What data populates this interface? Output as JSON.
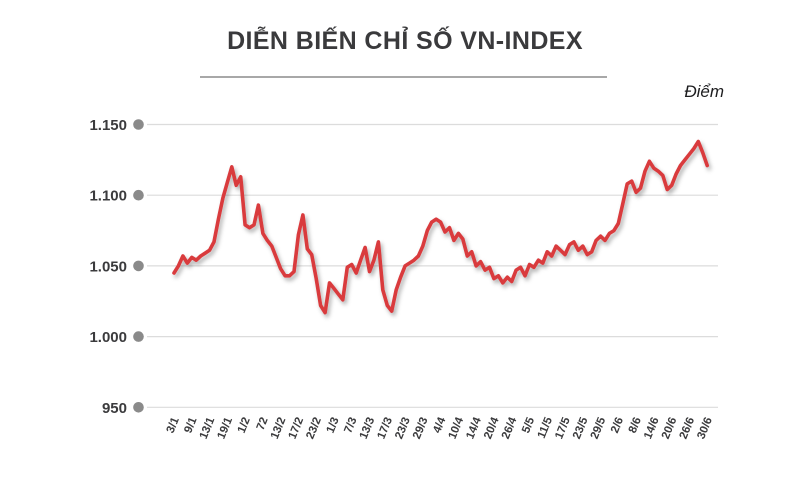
{
  "title": "DIỄN BIẾN CHỈ SỐ VN-INDEX",
  "unit_label": "Điểm",
  "chart_data": {
    "type": "line",
    "series_name": "VN-Index",
    "line_color": "#d93a3e",
    "grid": true,
    "gridline_color": "#dcdcdc",
    "grid_dot_color": "#8a8a8a",
    "text_color": "#3b3b3d",
    "ylim": [
      950,
      1150
    ],
    "y_ticks": [
      {
        "label": "1.150",
        "value": 1150
      },
      {
        "label": "1.100",
        "value": 1100
      },
      {
        "label": "1.050",
        "value": 1050
      },
      {
        "label": "1.000",
        "value": 1000
      },
      {
        "label": "950",
        "value": 950
      }
    ],
    "x_labels": [
      "3/1",
      "9/1",
      "13/1",
      "19/1",
      "1/2",
      "72",
      "13/2",
      "17/2",
      "23/2",
      "1/3",
      "7/3",
      "13/3",
      "17/3",
      "23/3",
      "29/3",
      "4/4",
      "10/4",
      "14/4",
      "20/4",
      "26/4",
      "5/5",
      "11/5",
      "17/5",
      "23/5",
      "29/5",
      "2/6",
      "8/6",
      "14/6",
      "20/6",
      "26/6",
      "30/6"
    ],
    "points_per_label": 4,
    "values": [
      1045,
      1050,
      1057,
      1052,
      1056,
      1054,
      1057,
      1059,
      1061,
      1067,
      1083,
      1098,
      1109,
      1120,
      1107,
      1113,
      1079,
      1077,
      1079,
      1093,
      1073,
      1068,
      1064,
      1056,
      1048,
      1043,
      1043,
      1046,
      1072,
      1086,
      1062,
      1058,
      1041,
      1022,
      1017,
      1038,
      1034,
      1030,
      1026,
      1049,
      1051,
      1045,
      1054,
      1063,
      1046,
      1054,
      1067,
      1033,
      1022,
      1018,
      1033,
      1042,
      1050,
      1052,
      1054,
      1057,
      1064,
      1075,
      1081,
      1083,
      1081,
      1074,
      1077,
      1068,
      1073,
      1069,
      1057,
      1060,
      1050,
      1053,
      1047,
      1049,
      1041,
      1043,
      1038,
      1042,
      1039,
      1047,
      1049,
      1043,
      1051,
      1049,
      1054,
      1052,
      1060,
      1057,
      1064,
      1061,
      1058,
      1065,
      1067,
      1061,
      1064,
      1058,
      1060,
      1068,
      1071,
      1068,
      1073,
      1075,
      1080,
      1094,
      1108,
      1110,
      1102,
      1105,
      1117,
      1124,
      1119,
      1117,
      1114,
      1104,
      1107,
      1115,
      1121,
      1125,
      1129,
      1133,
      1138,
      1130,
      1121
    ]
  }
}
